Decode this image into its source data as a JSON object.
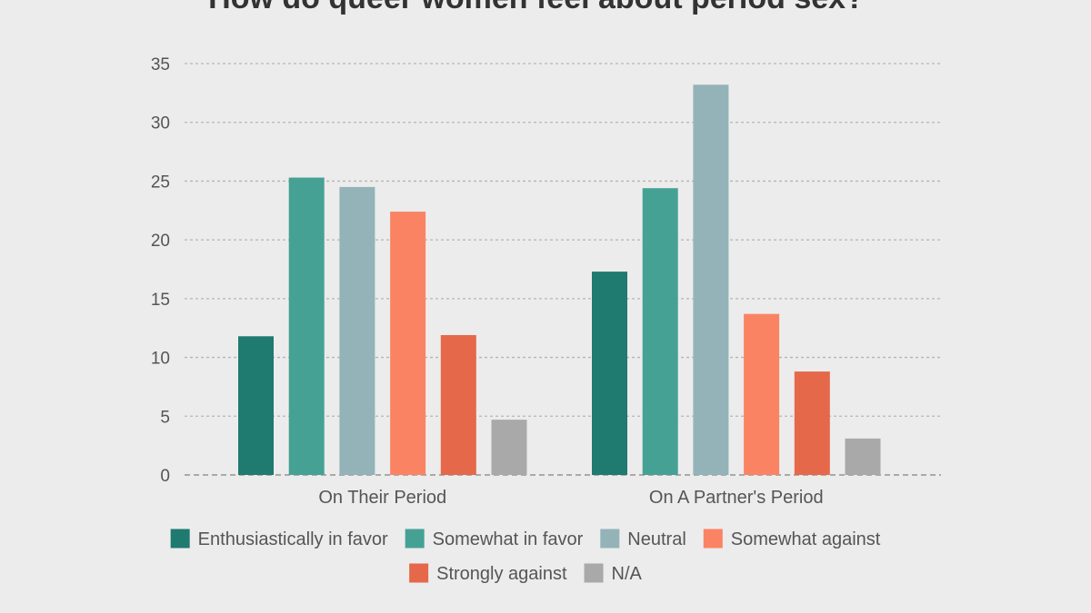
{
  "chart_data": {
    "type": "bar",
    "title": "How do queer women feel about period sex?",
    "categories": [
      "On Their Period",
      "On A Partner's Period"
    ],
    "series": [
      {
        "name": "Enthusiastically in favor",
        "color": "#1f7a70",
        "values": [
          11.8,
          17.3
        ]
      },
      {
        "name": "Somewhat in favor",
        "color": "#46a195",
        "values": [
          25.3,
          24.4
        ]
      },
      {
        "name": "Neutral",
        "color": "#93b3b8",
        "values": [
          24.5,
          33.2
        ]
      },
      {
        "name": "Somewhat against",
        "color": "#fa8363",
        "values": [
          22.4,
          13.7
        ]
      },
      {
        "name": "Strongly against",
        "color": "#e5684a",
        "values": [
          11.9,
          8.8
        ]
      },
      {
        "name": "N/A",
        "color": "#a9a9a9",
        "values": [
          4.7,
          3.1
        ]
      }
    ],
    "ylim": [
      0,
      35
    ],
    "yticks": [
      0,
      5,
      10,
      15,
      20,
      25,
      30,
      35
    ],
    "xlabel": "",
    "ylabel": "",
    "grid": true,
    "legend_position": "bottom"
  }
}
